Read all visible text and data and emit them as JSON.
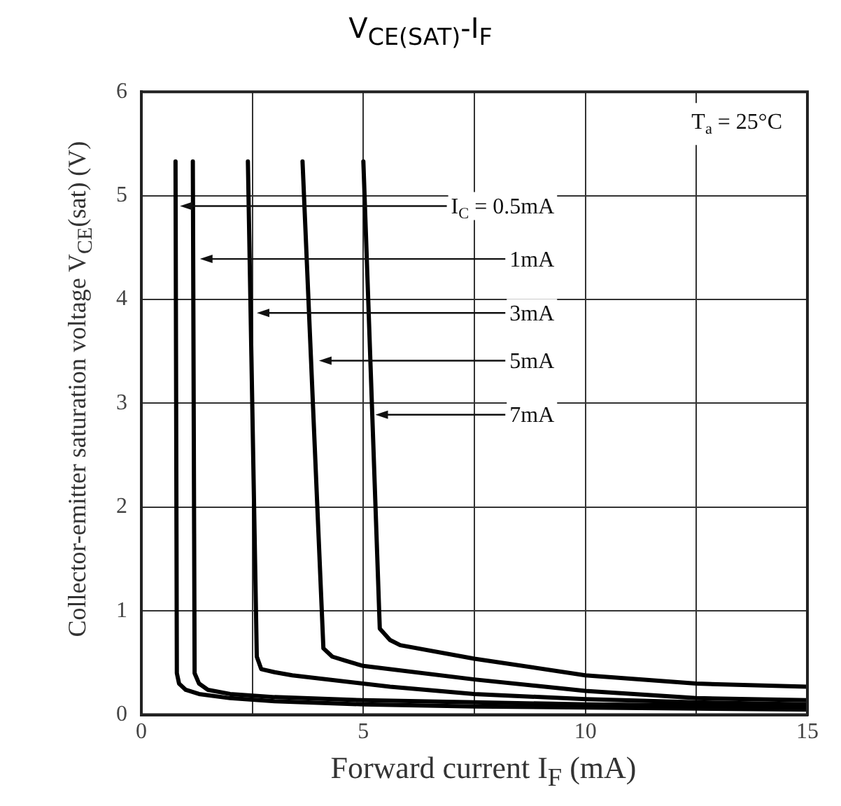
{
  "chart_data": {
    "type": "line",
    "title": "V$_{CE(SAT)}$-I$_{F}$",
    "xlabel": "Forward current I$_{F}$ (mA)",
    "ylabel": "Collector-emitter saturation voltage V$_{CE}$(sat) (V)",
    "xlim": [
      0,
      15
    ],
    "xticks": [
      0,
      {
        "value": 2.5,
        "label": null
      },
      5,
      {
        "value": 7.5,
        "label": null
      },
      10,
      {
        "value": 12.5,
        "label": null
      },
      15
    ],
    "ylim": [
      0,
      6
    ],
    "yticks": [
      0,
      1,
      2,
      3,
      4,
      5,
      6
    ],
    "grid": true,
    "legend": false,
    "marker": "none",
    "line_style": "solid",
    "series": [
      {
        "color": "#000000",
        "x": [
          0.77,
          0.8,
          0.85,
          1.0,
          1.3,
          2.0,
          3.0,
          5.0,
          7.5,
          10,
          12.5,
          15
        ],
        "values": [
          5.33,
          0.4,
          0.3,
          0.24,
          0.2,
          0.16,
          0.13,
          0.1,
          0.08,
          0.07,
          0.06,
          0.05
        ]
      },
      {
        "color": "#000000",
        "x": [
          1.16,
          1.2,
          1.3,
          1.5,
          2.0,
          3.0,
          5.0,
          7.5,
          10,
          12.5,
          15
        ],
        "values": [
          5.33,
          0.4,
          0.3,
          0.24,
          0.2,
          0.17,
          0.14,
          0.12,
          0.1,
          0.09,
          0.08
        ]
      },
      {
        "color": "#000000",
        "x": [
          2.4,
          2.6,
          2.7,
          3.0,
          3.4,
          5.6,
          7.5,
          10,
          12.5,
          15
        ],
        "values": [
          5.33,
          0.56,
          0.44,
          0.41,
          0.38,
          0.27,
          0.2,
          0.15,
          0.12,
          0.1
        ]
      },
      {
        "color": "#000000",
        "x": [
          3.63,
          4.1,
          4.3,
          4.6,
          5.0,
          7.5,
          10,
          12.5,
          15
        ],
        "values": [
          5.33,
          0.64,
          0.56,
          0.52,
          0.47,
          0.34,
          0.23,
          0.16,
          0.14
        ]
      },
      {
        "color": "#000000",
        "x": [
          5.0,
          5.37,
          5.6,
          5.83,
          7.5,
          10,
          12.5,
          15
        ],
        "values": [
          5.33,
          0.83,
          0.72,
          0.67,
          0.54,
          0.38,
          0.3,
          0.27
        ]
      }
    ],
    "annotations": [
      {
        "text": "I$_{C}$ = 0.5mA",
        "x": 0.87,
        "y": 4.9
      },
      {
        "text": "1mA",
        "x": 1.32,
        "y": 4.39
      },
      {
        "text": "3mA",
        "x": 2.6,
        "y": 3.87
      },
      {
        "text": "5mA",
        "x": 4.0,
        "y": 3.41
      },
      {
        "text": "7mA",
        "x": 5.27,
        "y": 2.89
      },
      "T$_{a}$ = 25°C"
    ]
  }
}
